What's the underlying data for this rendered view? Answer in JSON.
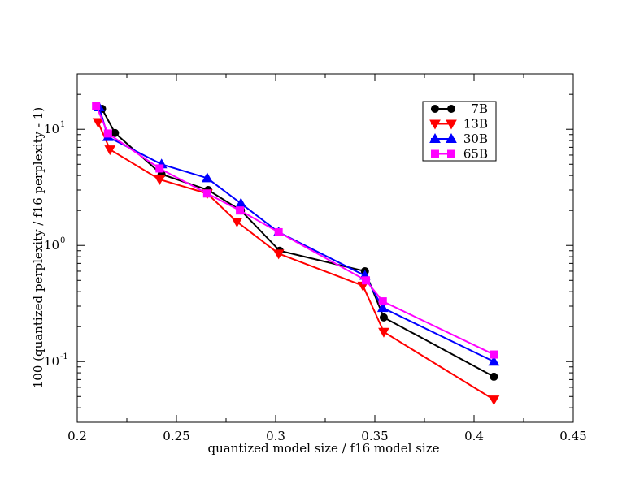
{
  "chart_data": {
    "type": "line",
    "title": "",
    "xlabel": "quantized model size / f16 model size",
    "ylabel": "100 (quantized perplexity / f16 perplexity - 1)",
    "xlim": [
      0.2,
      0.45
    ],
    "ylim": [
      0.03,
      30
    ],
    "yscale": "log",
    "x_ticks": [
      0.2,
      0.25,
      0.3,
      0.35,
      0.4,
      0.45
    ],
    "x_tick_labels": [
      "0.2",
      "0.25",
      "0.3",
      "0.35",
      "0.4",
      "0.45"
    ],
    "y_ticks": [
      {
        "value": 0.1,
        "base": "10",
        "exp": "-1"
      },
      {
        "value": 1,
        "base": "10",
        "exp": "0"
      },
      {
        "value": 10,
        "base": "10",
        "exp": "1"
      }
    ],
    "legend_position": "top-right",
    "series": [
      {
        "name": "7B",
        "color": "#000000",
        "marker": "circle",
        "points": [
          [
            0.2125,
            15.0
          ],
          [
            0.219,
            9.3
          ],
          [
            0.2425,
            4.1
          ],
          [
            0.266,
            3.0
          ],
          [
            0.2825,
            2.0
          ],
          [
            0.302,
            0.9
          ],
          [
            0.345,
            0.6
          ],
          [
            0.3545,
            0.24
          ],
          [
            0.41,
            0.074
          ]
        ]
      },
      {
        "name": "13B",
        "color": "#ff0000",
        "marker": "triangle-down",
        "points": [
          [
            0.2105,
            11.5
          ],
          [
            0.2165,
            6.7
          ],
          [
            0.2415,
            3.7
          ],
          [
            0.2655,
            2.8
          ],
          [
            0.2805,
            1.6
          ],
          [
            0.3015,
            0.85
          ],
          [
            0.344,
            0.45
          ],
          [
            0.3545,
            0.18
          ],
          [
            0.41,
            0.047
          ]
        ]
      },
      {
        "name": "30B",
        "color": "#0000ff",
        "marker": "triangle-up",
        "points": [
          [
            0.211,
            15.5
          ],
          [
            0.2155,
            8.6
          ],
          [
            0.2425,
            5.0
          ],
          [
            0.2655,
            3.8
          ],
          [
            0.2825,
            2.3
          ],
          [
            0.3015,
            1.3
          ],
          [
            0.345,
            0.55
          ],
          [
            0.354,
            0.29
          ],
          [
            0.41,
            0.1
          ]
        ]
      },
      {
        "name": "65B",
        "color": "#ff00ff",
        "marker": "square",
        "points": [
          [
            0.2095,
            16.0
          ],
          [
            0.2155,
            9.2
          ],
          [
            0.2415,
            4.6
          ],
          [
            0.2655,
            2.8
          ],
          [
            0.282,
            2.0
          ],
          [
            0.3015,
            1.3
          ],
          [
            0.3455,
            0.5
          ],
          [
            0.354,
            0.33
          ],
          [
            0.41,
            0.115
          ]
        ]
      }
    ]
  }
}
